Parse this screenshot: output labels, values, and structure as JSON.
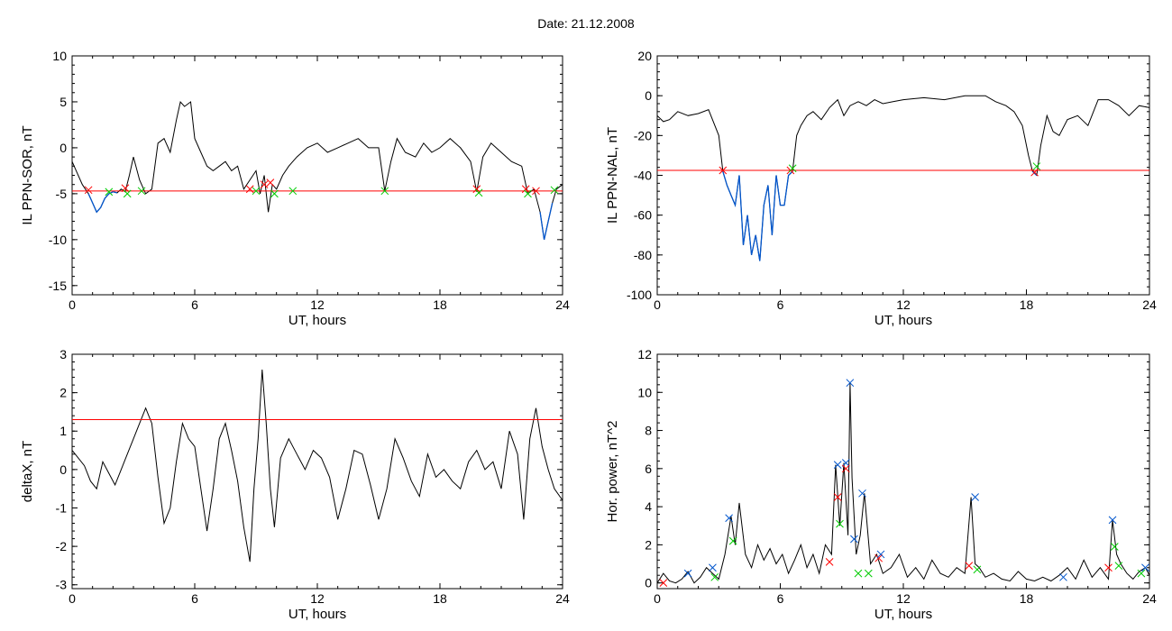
{
  "title": "Date:  21.12.2008",
  "colors": {
    "trace": "#000000",
    "below": "#0055cc",
    "threshold": "#ff0000",
    "cross_red": "#ff0000",
    "cross_green": "#00cc00",
    "cross_blue": "#0055cc"
  },
  "chart_data": [
    {
      "type": "line",
      "id": "ppn-sor",
      "xlabel": "UT, hours",
      "ylabel": "IL PPN-SOR, nT",
      "xlim": [
        0,
        24
      ],
      "ylim": [
        -16,
        10
      ],
      "xticks": [
        0,
        6,
        12,
        18,
        24
      ],
      "yticks": [
        -15,
        -10,
        -5,
        0,
        5,
        10
      ],
      "threshold": -4.7,
      "series": [
        {
          "x": [
            0,
            0.2,
            0.5,
            0.8,
            1.0,
            1.2,
            1.4,
            1.6,
            1.8,
            2.0,
            2.2,
            2.4,
            2.6,
            2.8,
            3.0,
            3.3,
            3.6,
            3.9,
            4.2,
            4.5,
            4.8,
            5.1,
            5.3,
            5.5,
            5.8,
            6.0,
            6.3,
            6.6,
            6.9,
            7.2,
            7.5,
            7.8,
            8.1,
            8.4,
            8.7,
            9.0,
            9.2,
            9.4,
            9.6,
            9.8,
            10.0,
            10.3,
            10.6,
            11.0,
            11.5,
            12.0,
            12.5,
            13.0,
            13.5,
            14.0,
            14.5,
            15.0,
            15.3,
            15.6,
            15.9,
            16.3,
            16.8,
            17.2,
            17.6,
            18.0,
            18.5,
            19.0,
            19.5,
            19.8,
            20.1,
            20.5,
            21.0,
            21.5,
            22.0,
            22.3,
            22.6,
            22.9,
            23.1,
            23.3,
            23.5,
            23.7,
            24.0
          ],
          "y": [
            -1.5,
            -2.5,
            -4.0,
            -5.0,
            -6.0,
            -7.0,
            -6.5,
            -5.5,
            -5.0,
            -4.8,
            -4.9,
            -4.5,
            -4.8,
            -3.0,
            -1.0,
            -3.5,
            -5.0,
            -4.5,
            0.5,
            1.0,
            -0.5,
            3.0,
            5.0,
            4.5,
            5.0,
            1.0,
            -0.5,
            -2.0,
            -2.5,
            -2.0,
            -1.5,
            -2.5,
            -2.0,
            -4.5,
            -3.5,
            -2.5,
            -5.0,
            -3.0,
            -7.0,
            -4.0,
            -4.5,
            -3.0,
            -2.0,
            -1.0,
            0.0,
            0.5,
            -0.5,
            0.0,
            0.5,
            1.0,
            0.0,
            0.0,
            -4.7,
            -1.5,
            1.0,
            -0.5,
            -1.0,
            0.5,
            -0.5,
            0.0,
            1.0,
            0.0,
            -1.5,
            -4.8,
            -1.0,
            0.5,
            -0.5,
            -1.5,
            -2.0,
            -5.0,
            -4.5,
            -7.0,
            -10.0,
            -8.0,
            -6.0,
            -4.5,
            -4.0
          ]
        }
      ],
      "crosses": [
        {
          "x": 0.8,
          "y": -4.6,
          "c": "red"
        },
        {
          "x": 1.8,
          "y": -4.8,
          "c": "green"
        },
        {
          "x": 2.6,
          "y": -4.4,
          "c": "red"
        },
        {
          "x": 2.7,
          "y": -5.0,
          "c": "green"
        },
        {
          "x": 3.4,
          "y": -4.7,
          "c": "green"
        },
        {
          "x": 8.7,
          "y": -4.5,
          "c": "red"
        },
        {
          "x": 9.0,
          "y": -4.7,
          "c": "green"
        },
        {
          "x": 9.4,
          "y": -4.0,
          "c": "red"
        },
        {
          "x": 9.7,
          "y": -3.8,
          "c": "red"
        },
        {
          "x": 9.9,
          "y": -5.0,
          "c": "green"
        },
        {
          "x": 10.8,
          "y": -4.7,
          "c": "green"
        },
        {
          "x": 15.3,
          "y": -4.7,
          "c": "green"
        },
        {
          "x": 19.8,
          "y": -4.5,
          "c": "red"
        },
        {
          "x": 19.9,
          "y": -4.9,
          "c": "green"
        },
        {
          "x": 22.2,
          "y": -4.5,
          "c": "red"
        },
        {
          "x": 22.3,
          "y": -5.0,
          "c": "green"
        },
        {
          "x": 22.7,
          "y": -4.7,
          "c": "red"
        },
        {
          "x": 23.6,
          "y": -4.6,
          "c": "green"
        }
      ]
    },
    {
      "type": "line",
      "id": "ppn-nal",
      "xlabel": "UT, hours",
      "ylabel": "IL PPN-NAL, nT",
      "xlim": [
        0,
        24
      ],
      "ylim": [
        -100,
        20
      ],
      "xticks": [
        0,
        6,
        12,
        18,
        24
      ],
      "yticks": [
        -100,
        -80,
        -60,
        -40,
        -20,
        0,
        20
      ],
      "threshold": -37.5,
      "series": [
        {
          "x": [
            0,
            0.3,
            0.6,
            1.0,
            1.5,
            2.0,
            2.5,
            3.0,
            3.2,
            3.4,
            3.6,
            3.8,
            4.0,
            4.2,
            4.4,
            4.6,
            4.8,
            5.0,
            5.2,
            5.4,
            5.6,
            5.8,
            6.0,
            6.2,
            6.4,
            6.6,
            6.8,
            7.0,
            7.3,
            7.6,
            8.0,
            8.4,
            8.8,
            9.1,
            9.4,
            9.8,
            10.2,
            10.6,
            11.0,
            11.5,
            12.0,
            13.0,
            14.0,
            15.0,
            16.0,
            16.5,
            17.0,
            17.4,
            17.8,
            18.1,
            18.3,
            18.5,
            18.7,
            19.0,
            19.3,
            19.6,
            20.0,
            20.5,
            21.0,
            21.5,
            22.0,
            22.5,
            23.0,
            23.5,
            24.0
          ],
          "y": [
            -10,
            -13,
            -12,
            -8,
            -10,
            -9,
            -7,
            -20,
            -38,
            -45,
            -50,
            -55,
            -40,
            -75,
            -60,
            -80,
            -70,
            -83,
            -55,
            -45,
            -70,
            -40,
            -55,
            -55,
            -40,
            -38,
            -20,
            -15,
            -10,
            -8,
            -12,
            -6,
            -2,
            -10,
            -5,
            -3,
            -5,
            -2,
            -4,
            -3,
            -2,
            -1,
            -2,
            0,
            0,
            -3,
            -5,
            -8,
            -15,
            -30,
            -38,
            -40,
            -25,
            -10,
            -18,
            -20,
            -12,
            -10,
            -15,
            -2,
            -2,
            -5,
            -10,
            -5,
            -6
          ]
        }
      ],
      "crosses": [
        {
          "x": 3.2,
          "y": -37.5,
          "c": "red"
        },
        {
          "x": 6.5,
          "y": -37.5,
          "c": "red"
        },
        {
          "x": 6.6,
          "y": -36.5,
          "c": "green"
        },
        {
          "x": 18.4,
          "y": -38.5,
          "c": "red"
        },
        {
          "x": 18.5,
          "y": -35.5,
          "c": "green"
        }
      ]
    },
    {
      "type": "line",
      "id": "deltax",
      "xlabel": "UT, hours",
      "ylabel": "deltaX, nT",
      "xlim": [
        0,
        24
      ],
      "ylim": [
        -3.1,
        3
      ],
      "xticks": [
        0,
        6,
        12,
        18,
        24
      ],
      "yticks": [
        -3,
        -2,
        -1,
        0,
        1,
        2,
        3
      ],
      "threshold": 1.3,
      "series": [
        {
          "x": [
            0,
            0.3,
            0.6,
            0.9,
            1.2,
            1.5,
            1.8,
            2.1,
            2.4,
            2.7,
            3.0,
            3.3,
            3.6,
            3.9,
            4.2,
            4.5,
            4.8,
            5.1,
            5.4,
            5.7,
            6.0,
            6.3,
            6.6,
            6.9,
            7.2,
            7.5,
            7.8,
            8.1,
            8.4,
            8.7,
            8.9,
            9.1,
            9.3,
            9.5,
            9.7,
            9.9,
            10.2,
            10.6,
            11.0,
            11.4,
            11.8,
            12.2,
            12.6,
            13.0,
            13.4,
            13.8,
            14.2,
            14.6,
            15.0,
            15.4,
            15.8,
            16.2,
            16.6,
            17.0,
            17.4,
            17.8,
            18.2,
            18.6,
            19.0,
            19.4,
            19.8,
            20.2,
            20.6,
            21.0,
            21.4,
            21.8,
            22.1,
            22.4,
            22.7,
            23.0,
            23.3,
            23.6,
            24.0
          ],
          "y": [
            0.5,
            0.3,
            0.1,
            -0.3,
            -0.5,
            0.2,
            -0.1,
            -0.4,
            0.0,
            0.4,
            0.8,
            1.2,
            1.6,
            1.2,
            -0.2,
            -1.4,
            -1.0,
            0.2,
            1.2,
            0.8,
            0.6,
            -0.5,
            -1.6,
            -0.5,
            0.8,
            1.2,
            0.5,
            -0.3,
            -1.5,
            -2.4,
            -0.5,
            0.8,
            2.6,
            1.2,
            -0.5,
            -1.5,
            0.3,
            0.8,
            0.4,
            0.0,
            0.5,
            0.3,
            -0.2,
            -1.3,
            -0.5,
            0.5,
            0.4,
            -0.4,
            -1.3,
            -0.5,
            0.8,
            0.3,
            -0.3,
            -0.7,
            0.4,
            -0.2,
            0.0,
            -0.3,
            -0.5,
            0.2,
            0.5,
            0.0,
            0.2,
            -0.5,
            1.0,
            0.4,
            -1.3,
            0.8,
            1.6,
            0.6,
            0.0,
            -0.5,
            -0.8
          ]
        }
      ],
      "crosses": []
    },
    {
      "type": "line",
      "id": "hor-power",
      "xlabel": "UT, hours",
      "ylabel": "Hor. power, nT^2",
      "xlim": [
        0,
        24
      ],
      "ylim": [
        -0.3,
        12
      ],
      "xticks": [
        0,
        6,
        12,
        18,
        24
      ],
      "yticks": [
        0,
        2,
        4,
        6,
        8,
        10,
        12
      ],
      "threshold": null,
      "series": [
        {
          "x": [
            0,
            0.3,
            0.6,
            0.9,
            1.2,
            1.5,
            1.8,
            2.1,
            2.4,
            2.7,
            3.0,
            3.3,
            3.6,
            3.8,
            4.0,
            4.3,
            4.6,
            4.9,
            5.2,
            5.5,
            5.8,
            6.1,
            6.4,
            6.7,
            7.0,
            7.3,
            7.6,
            7.9,
            8.2,
            8.5,
            8.7,
            8.9,
            9.1,
            9.3,
            9.4,
            9.5,
            9.7,
            9.9,
            10.1,
            10.4,
            10.7,
            11.0,
            11.4,
            11.8,
            12.2,
            12.6,
            13.0,
            13.4,
            13.8,
            14.2,
            14.6,
            15.0,
            15.3,
            15.5,
            15.7,
            16.0,
            16.4,
            16.8,
            17.2,
            17.6,
            18.0,
            18.4,
            18.8,
            19.2,
            19.6,
            20.0,
            20.4,
            20.8,
            21.2,
            21.6,
            22.0,
            22.2,
            22.4,
            22.6,
            22.9,
            23.2,
            23.5,
            23.8,
            24.0
          ],
          "y": [
            0.0,
            0.5,
            0.1,
            0.0,
            0.2,
            0.6,
            0.0,
            0.3,
            0.8,
            0.5,
            0.2,
            1.5,
            3.5,
            2.0,
            4.2,
            1.5,
            0.8,
            2.0,
            1.2,
            1.8,
            1.0,
            1.5,
            0.5,
            1.2,
            2.0,
            0.8,
            1.5,
            0.5,
            2.0,
            1.5,
            6.2,
            3.0,
            6.3,
            2.5,
            10.5,
            5.5,
            1.5,
            2.5,
            4.7,
            1.0,
            1.5,
            0.5,
            0.8,
            1.5,
            0.3,
            0.8,
            0.2,
            1.2,
            0.5,
            0.3,
            0.8,
            0.5,
            4.5,
            1.0,
            0.8,
            0.3,
            0.5,
            0.2,
            0.1,
            0.6,
            0.2,
            0.1,
            0.3,
            0.1,
            0.4,
            0.8,
            0.2,
            1.2,
            0.3,
            0.8,
            0.2,
            3.3,
            1.5,
            1.0,
            0.5,
            0.2,
            0.6,
            0.8,
            0.4
          ]
        }
      ],
      "crosses": [
        {
          "x": 0.3,
          "y": 0.0,
          "c": "red"
        },
        {
          "x": 1.5,
          "y": 0.5,
          "c": "blue"
        },
        {
          "x": 2.7,
          "y": 0.8,
          "c": "blue"
        },
        {
          "x": 2.8,
          "y": 0.3,
          "c": "green"
        },
        {
          "x": 3.5,
          "y": 3.4,
          "c": "blue"
        },
        {
          "x": 3.7,
          "y": 2.2,
          "c": "green"
        },
        {
          "x": 8.4,
          "y": 1.1,
          "c": "red"
        },
        {
          "x": 8.8,
          "y": 6.2,
          "c": "blue"
        },
        {
          "x": 8.8,
          "y": 4.5,
          "c": "red"
        },
        {
          "x": 8.9,
          "y": 3.1,
          "c": "green"
        },
        {
          "x": 9.2,
          "y": 6.3,
          "c": "blue"
        },
        {
          "x": 9.2,
          "y": 6.0,
          "c": "red"
        },
        {
          "x": 9.4,
          "y": 10.5,
          "c": "blue"
        },
        {
          "x": 9.6,
          "y": 2.3,
          "c": "blue"
        },
        {
          "x": 9.8,
          "y": 0.5,
          "c": "green"
        },
        {
          "x": 10.0,
          "y": 4.7,
          "c": "blue"
        },
        {
          "x": 10.3,
          "y": 0.5,
          "c": "green"
        },
        {
          "x": 10.8,
          "y": 1.3,
          "c": "red"
        },
        {
          "x": 10.9,
          "y": 1.5,
          "c": "blue"
        },
        {
          "x": 15.2,
          "y": 0.9,
          "c": "red"
        },
        {
          "x": 15.5,
          "y": 4.5,
          "c": "blue"
        },
        {
          "x": 15.6,
          "y": 0.7,
          "c": "green"
        },
        {
          "x": 19.8,
          "y": 0.3,
          "c": "blue"
        },
        {
          "x": 22.0,
          "y": 0.8,
          "c": "red"
        },
        {
          "x": 22.2,
          "y": 3.3,
          "c": "blue"
        },
        {
          "x": 22.3,
          "y": 1.9,
          "c": "green"
        },
        {
          "x": 22.5,
          "y": 0.9,
          "c": "green"
        },
        {
          "x": 23.6,
          "y": 0.5,
          "c": "green"
        },
        {
          "x": 23.8,
          "y": 0.8,
          "c": "blue"
        }
      ]
    }
  ]
}
